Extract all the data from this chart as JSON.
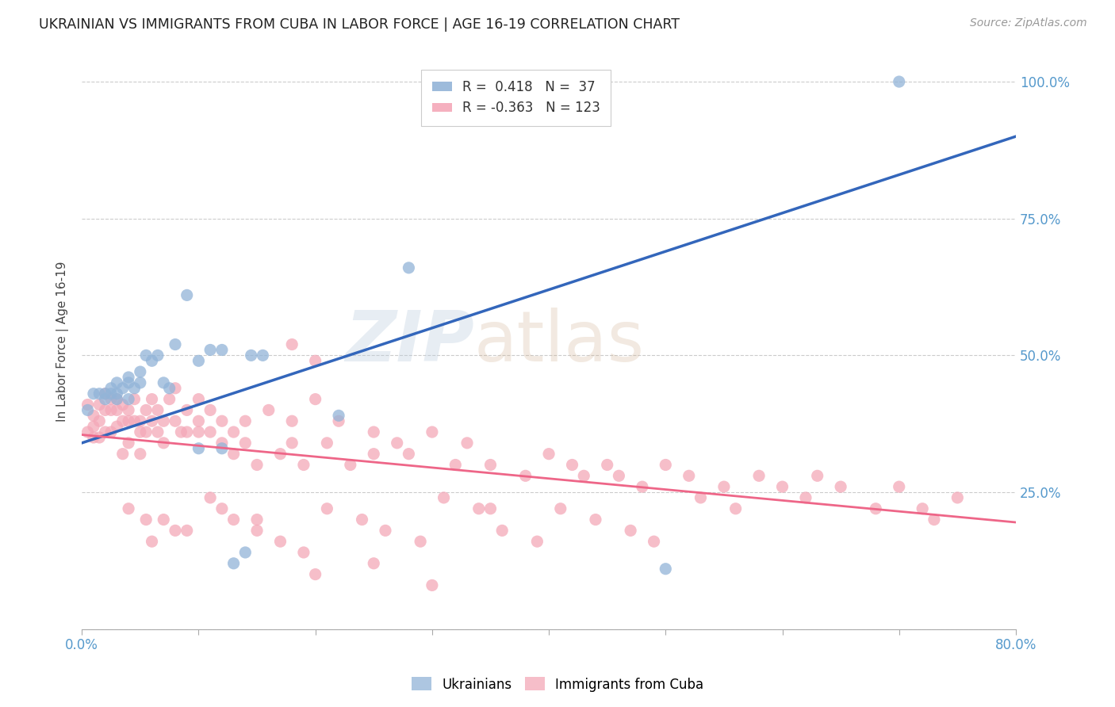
{
  "title": "UKRAINIAN VS IMMIGRANTS FROM CUBA IN LABOR FORCE | AGE 16-19 CORRELATION CHART",
  "source": "Source: ZipAtlas.com",
  "ylabel": "In Labor Force | Age 16-19",
  "xlim": [
    0.0,
    0.8
  ],
  "ylim": [
    0.0,
    1.05
  ],
  "x_ticks": [
    0.0,
    0.1,
    0.2,
    0.3,
    0.4,
    0.5,
    0.6,
    0.7,
    0.8
  ],
  "x_tick_labels": [
    "0.0%",
    "",
    "",
    "",
    "",
    "",
    "",
    "",
    "80.0%"
  ],
  "y_ticks": [
    0.0,
    0.25,
    0.5,
    0.75,
    1.0
  ],
  "y_tick_labels_right": [
    "",
    "25.0%",
    "50.0%",
    "75.0%",
    "100.0%"
  ],
  "blue_R": 0.418,
  "blue_N": 37,
  "pink_R": -0.363,
  "pink_N": 123,
  "blue_color": "#92B4D8",
  "pink_color": "#F4A8B8",
  "blue_line_color": "#3366BB",
  "pink_line_color": "#EE6688",
  "tick_color": "#5599CC",
  "background_color": "#FFFFFF",
  "grid_color": "#CCCCCC",
  "watermark_zip": "ZIP",
  "watermark_atlas": "atlas",
  "blue_line_x0": 0.0,
  "blue_line_y0": 0.34,
  "blue_line_x1": 0.8,
  "blue_line_y1": 0.9,
  "pink_line_x0": 0.0,
  "pink_line_y0": 0.355,
  "pink_line_x1": 0.8,
  "pink_line_y1": 0.195,
  "blue_scatter_x": [
    0.005,
    0.01,
    0.015,
    0.02,
    0.02,
    0.025,
    0.025,
    0.03,
    0.03,
    0.03,
    0.04,
    0.04,
    0.04,
    0.045,
    0.05,
    0.05,
    0.055,
    0.06,
    0.065,
    0.07,
    0.08,
    0.09,
    0.1,
    0.1,
    0.11,
    0.12,
    0.12,
    0.13,
    0.14,
    0.145,
    0.155,
    0.22,
    0.28,
    0.5,
    0.7,
    0.035,
    0.075
  ],
  "blue_scatter_y": [
    0.4,
    0.43,
    0.43,
    0.43,
    0.42,
    0.44,
    0.43,
    0.45,
    0.43,
    0.42,
    0.46,
    0.45,
    0.42,
    0.44,
    0.47,
    0.45,
    0.5,
    0.49,
    0.5,
    0.45,
    0.52,
    0.61,
    0.49,
    0.33,
    0.51,
    0.51,
    0.33,
    0.12,
    0.14,
    0.5,
    0.5,
    0.39,
    0.66,
    0.11,
    1.0,
    0.44,
    0.44
  ],
  "pink_scatter_x": [
    0.005,
    0.005,
    0.01,
    0.01,
    0.01,
    0.015,
    0.015,
    0.015,
    0.02,
    0.02,
    0.02,
    0.025,
    0.025,
    0.025,
    0.03,
    0.03,
    0.03,
    0.035,
    0.035,
    0.035,
    0.04,
    0.04,
    0.04,
    0.045,
    0.045,
    0.05,
    0.05,
    0.05,
    0.055,
    0.055,
    0.06,
    0.06,
    0.065,
    0.065,
    0.07,
    0.07,
    0.075,
    0.08,
    0.08,
    0.085,
    0.09,
    0.09,
    0.1,
    0.1,
    0.1,
    0.11,
    0.11,
    0.12,
    0.12,
    0.13,
    0.13,
    0.14,
    0.14,
    0.15,
    0.16,
    0.17,
    0.18,
    0.18,
    0.19,
    0.2,
    0.21,
    0.22,
    0.23,
    0.25,
    0.25,
    0.27,
    0.28,
    0.3,
    0.32,
    0.33,
    0.35,
    0.38,
    0.4,
    0.42,
    0.43,
    0.45,
    0.46,
    0.48,
    0.5,
    0.52,
    0.55,
    0.58,
    0.6,
    0.62,
    0.63,
    0.65,
    0.68,
    0.7,
    0.72,
    0.73,
    0.75,
    0.2,
    0.35,
    0.18,
    0.07,
    0.08,
    0.04,
    0.055,
    0.06,
    0.09,
    0.11,
    0.12,
    0.13,
    0.15,
    0.17,
    0.19,
    0.21,
    0.24,
    0.26,
    0.29,
    0.31,
    0.34,
    0.36,
    0.39,
    0.41,
    0.44,
    0.47,
    0.49,
    0.53,
    0.56,
    0.15,
    0.2,
    0.25,
    0.3
  ],
  "pink_scatter_y": [
    0.41,
    0.36,
    0.39,
    0.37,
    0.35,
    0.41,
    0.38,
    0.35,
    0.43,
    0.4,
    0.36,
    0.42,
    0.4,
    0.36,
    0.42,
    0.4,
    0.37,
    0.41,
    0.38,
    0.32,
    0.4,
    0.38,
    0.34,
    0.42,
    0.38,
    0.38,
    0.36,
    0.32,
    0.4,
    0.36,
    0.42,
    0.38,
    0.4,
    0.36,
    0.38,
    0.34,
    0.42,
    0.44,
    0.38,
    0.36,
    0.4,
    0.36,
    0.42,
    0.38,
    0.36,
    0.4,
    0.36,
    0.38,
    0.34,
    0.36,
    0.32,
    0.38,
    0.34,
    0.3,
    0.4,
    0.32,
    0.38,
    0.34,
    0.3,
    0.42,
    0.34,
    0.38,
    0.3,
    0.36,
    0.32,
    0.34,
    0.32,
    0.36,
    0.3,
    0.34,
    0.3,
    0.28,
    0.32,
    0.3,
    0.28,
    0.3,
    0.28,
    0.26,
    0.3,
    0.28,
    0.26,
    0.28,
    0.26,
    0.24,
    0.28,
    0.26,
    0.22,
    0.26,
    0.22,
    0.2,
    0.24,
    0.49,
    0.22,
    0.52,
    0.2,
    0.18,
    0.22,
    0.2,
    0.16,
    0.18,
    0.24,
    0.22,
    0.2,
    0.18,
    0.16,
    0.14,
    0.22,
    0.2,
    0.18,
    0.16,
    0.24,
    0.22,
    0.18,
    0.16,
    0.22,
    0.2,
    0.18,
    0.16,
    0.24,
    0.22,
    0.2,
    0.1,
    0.12,
    0.08
  ]
}
